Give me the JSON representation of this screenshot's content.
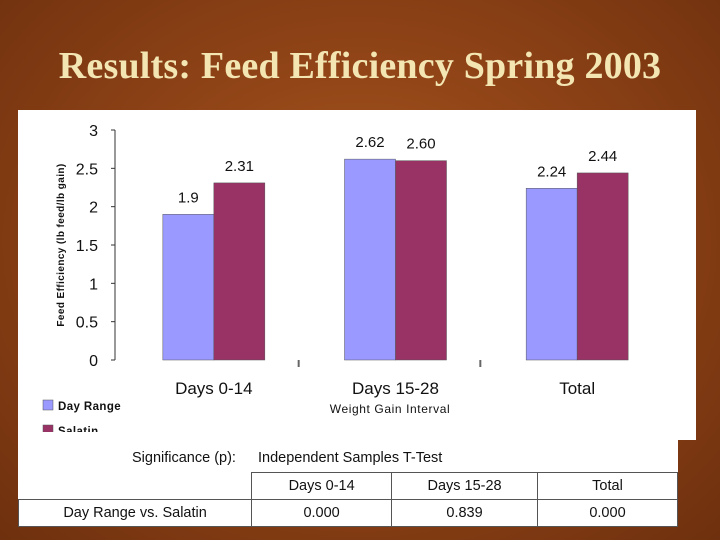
{
  "slide": {
    "title": "Results: Feed Efficiency Spring 2003"
  },
  "chart_data": {
    "type": "bar",
    "title": "",
    "xlabel": "Weight Gain Interval",
    "ylabel": "Feed Efficiency (lb feed/lb gain)",
    "ylim": [
      0,
      3
    ],
    "yticks": [
      0,
      0.5,
      1,
      1.5,
      2,
      2.5,
      3
    ],
    "ytick_labels": [
      "0",
      "0.5",
      "1",
      "1.5",
      "2",
      "2.5",
      "3"
    ],
    "categories": [
      "Days 0-14",
      "Days 15-28",
      "Total"
    ],
    "series": [
      {
        "name": "Day Range",
        "values": [
          1.9,
          2.62,
          2.24
        ],
        "labels": [
          "1.9",
          "2.62",
          "2.24"
        ],
        "color": "#9999ff"
      },
      {
        "name": "Salatin",
        "values": [
          2.31,
          2.6,
          2.44
        ],
        "labels": [
          "2.31",
          "2.60",
          "2.44"
        ],
        "color": "#993366"
      }
    ],
    "legend": "bottom-left",
    "grid": false
  },
  "significance": {
    "label": "Significance (p):",
    "test": "Independent Samples T-Test",
    "columns": [
      "Days 0-14",
      "Days 15-28",
      "Total"
    ],
    "rows": [
      {
        "name": "Day Range vs. Salatin",
        "values": [
          "0.000",
          "0.839",
          "0.000"
        ]
      }
    ]
  }
}
